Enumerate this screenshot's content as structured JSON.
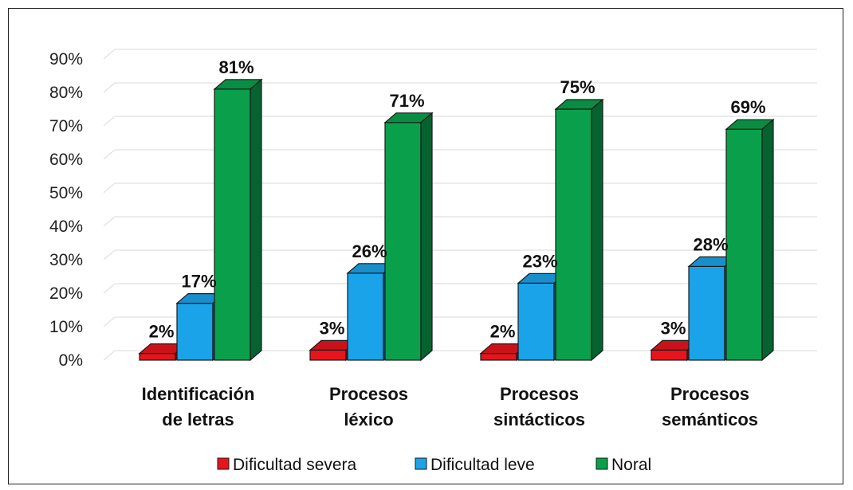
{
  "chart_data": {
    "type": "bar",
    "categories": [
      [
        "Identificación",
        "de letras"
      ],
      [
        "Procesos",
        "léxico"
      ],
      [
        "Procesos",
        "sintácticos"
      ],
      [
        "Procesos",
        "semánticos"
      ]
    ],
    "series": [
      {
        "name": "Dificultad severa",
        "values": [
          2,
          3,
          2,
          3
        ],
        "labels": [
          "2%",
          "3%",
          "2%",
          "3%"
        ],
        "color": "#e8141c"
      },
      {
        "name": "Dificultad leve",
        "values": [
          17,
          26,
          23,
          28
        ],
        "labels": [
          "17%",
          "26%",
          "23%",
          "28%"
        ],
        "color": "#1aa3e8"
      },
      {
        "name": "Noral",
        "values": [
          81,
          71,
          75,
          69
        ],
        "labels": [
          "81%",
          "71%",
          "75%",
          "69%"
        ],
        "color": "#0aa04b"
      }
    ],
    "y_ticks": [
      "0%",
      "10%",
      "20%",
      "30%",
      "40%",
      "50%",
      "60%",
      "70%",
      "80%",
      "90%"
    ],
    "ylim": [
      0,
      90
    ],
    "grid": true,
    "legend_position": "bottom",
    "bar_style": "3d"
  }
}
